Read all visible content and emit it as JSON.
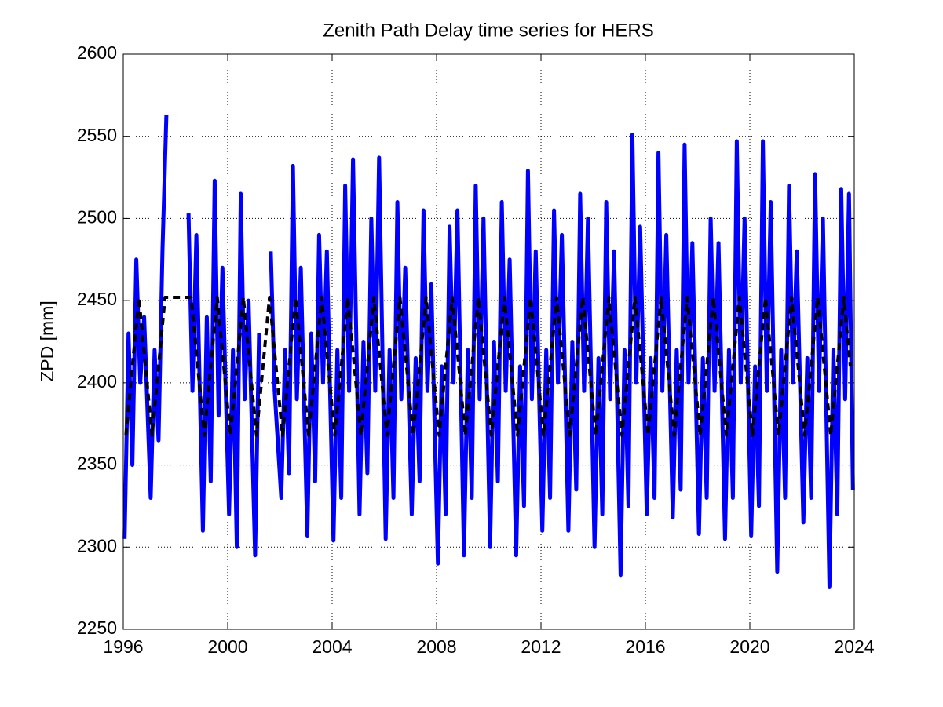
{
  "chart_data": {
    "type": "line",
    "title": "Zenith Path Delay time series for HERS",
    "y_label": "ZPD [mm]",
    "xlim": [
      1996,
      2024
    ],
    "xticks": [
      1996,
      2000,
      2004,
      2008,
      2012,
      2016,
      2020,
      2024
    ],
    "ylim": [
      2250,
      2600
    ],
    "yticks": [
      2250,
      2300,
      2350,
      2400,
      2450,
      2500,
      2550,
      2600
    ],
    "grid": true,
    "series": [
      {
        "color": "#0000ff",
        "style": "solid",
        "x": [
          1996.05,
          1996.2,
          1996.35,
          1996.5,
          1996.65,
          1996.8,
          1997.05,
          1997.2,
          1997.35,
          1997.5,
          1997.65,
          1997.8,
          1998.05,
          1998.2,
          1998.35,
          1998.5,
          1998.65,
          1998.8,
          1999.05,
          1999.2,
          1999.35,
          1999.5,
          1999.65,
          1999.8,
          2000.05,
          2000.2,
          2000.35,
          2000.5,
          2000.65,
          2000.8,
          2001.05,
          2001.2,
          2001.35,
          2001.5,
          2001.65,
          2001.8,
          2002.05,
          2002.2,
          2002.35,
          2002.5,
          2002.65,
          2002.8,
          2003.05,
          2003.2,
          2003.35,
          2003.5,
          2003.65,
          2003.8,
          2004.05,
          2004.2,
          2004.35,
          2004.5,
          2004.65,
          2004.8,
          2005.05,
          2005.2,
          2005.35,
          2005.5,
          2005.65,
          2005.8,
          2006.05,
          2006.2,
          2006.35,
          2006.5,
          2006.65,
          2006.8,
          2007.05,
          2007.2,
          2007.35,
          2007.5,
          2007.65,
          2007.8,
          2008.05,
          2008.2,
          2008.35,
          2008.5,
          2008.65,
          2008.8,
          2009.05,
          2009.2,
          2009.35,
          2009.5,
          2009.65,
          2009.8,
          2010.05,
          2010.2,
          2010.35,
          2010.5,
          2010.65,
          2010.8,
          2011.05,
          2011.2,
          2011.35,
          2011.5,
          2011.65,
          2011.8,
          2012.05,
          2012.2,
          2012.35,
          2012.5,
          2012.65,
          2012.8,
          2013.05,
          2013.2,
          2013.35,
          2013.5,
          2013.65,
          2013.8,
          2014.05,
          2014.2,
          2014.35,
          2014.5,
          2014.65,
          2014.8,
          2015.05,
          2015.2,
          2015.35,
          2015.5,
          2015.65,
          2015.8,
          2016.05,
          2016.2,
          2016.35,
          2016.5,
          2016.65,
          2016.8,
          2017.05,
          2017.2,
          2017.35,
          2017.5,
          2017.65,
          2017.8,
          2018.05,
          2018.2,
          2018.35,
          2018.5,
          2018.65,
          2018.8,
          2019.05,
          2019.2,
          2019.35,
          2019.5,
          2019.65,
          2019.8,
          2020.05,
          2020.2,
          2020.35,
          2020.5,
          2020.65,
          2020.8,
          2021.05,
          2021.2,
          2021.35,
          2021.5,
          2021.65,
          2021.8,
          2022.05,
          2022.2,
          2022.35,
          2022.5,
          2022.65,
          2022.8,
          2023.05,
          2023.2,
          2023.35,
          2023.5,
          2023.65,
          2023.8,
          2023.95
        ],
        "values": [
          2305,
          2430,
          2350,
          2475,
          2400,
          2440,
          2330,
          2420,
          2365,
          2480,
          2563,
          null,
          null,
          null,
          null,
          2503,
          2395,
          2490,
          2310,
          2440,
          2340,
          2523,
          2380,
          2470,
          2320,
          2420,
          2300,
          2515,
          2390,
          2450,
          2295,
          2430,
          null,
          null,
          2480,
          2395,
          2330,
          2420,
          2345,
          2532,
          2390,
          2470,
          2307,
          2430,
          2340,
          2490,
          2400,
          2480,
          2304,
          2420,
          2330,
          2520,
          2395,
          2536,
          2320,
          2425,
          2345,
          2500,
          2395,
          2537,
          2305,
          2420,
          2330,
          2510,
          2390,
          2470,
          2320,
          2415,
          2340,
          2505,
          2395,
          2460,
          2290,
          2410,
          2320,
          2495,
          2400,
          2505,
          2295,
          2420,
          2330,
          2520,
          2390,
          2500,
          2300,
          2425,
          2340,
          2510,
          2395,
          2475,
          2295,
          2410,
          2325,
          2529,
          2390,
          2480,
          2310,
          2420,
          2330,
          2505,
          2400,
          2490,
          2310,
          2425,
          2335,
          2515,
          2395,
          2500,
          2300,
          2415,
          2320,
          2510,
          2390,
          2480,
          2283,
          2420,
          2325,
          2551,
          2400,
          2495,
          2320,
          2415,
          2330,
          2540,
          2395,
          2490,
          2318,
          2420,
          2335,
          2545,
          2400,
          2485,
          2308,
          2415,
          2330,
          2500,
          2395,
          2485,
          2305,
          2420,
          2330,
          2547,
          2400,
          2500,
          2307,
          2410,
          2325,
          2547,
          2395,
          2510,
          2285,
          2420,
          2330,
          2520,
          2400,
          2480,
          2315,
          2415,
          2330,
          2527,
          2395,
          2500,
          2276,
          2420,
          2320,
          2518,
          2390,
          2515,
          2335
        ]
      },
      {
        "color": "#000000",
        "style": "dashed",
        "x": [
          1996.1,
          1996.35,
          1996.6,
          1996.85,
          1997.1,
          1997.35,
          1997.6,
          1998.6,
          1998.85,
          1999.1,
          1999.35,
          1999.6,
          1999.85,
          2000.1,
          2000.35,
          2000.6,
          2000.85,
          2001.1,
          2001.6,
          2001.85,
          2002.1,
          2002.35,
          2002.6,
          2002.85,
          2003.1,
          2003.35,
          2003.6,
          2003.85,
          2004.1,
          2004.35,
          2004.6,
          2004.85,
          2005.1,
          2005.35,
          2005.6,
          2005.85,
          2006.1,
          2006.35,
          2006.6,
          2006.85,
          2007.1,
          2007.35,
          2007.6,
          2007.85,
          2008.1,
          2008.35,
          2008.6,
          2008.85,
          2009.1,
          2009.35,
          2009.6,
          2009.85,
          2010.1,
          2010.35,
          2010.6,
          2010.85,
          2011.1,
          2011.35,
          2011.6,
          2011.85,
          2012.1,
          2012.35,
          2012.6,
          2012.85,
          2013.1,
          2013.35,
          2013.6,
          2013.85,
          2014.1,
          2014.35,
          2014.6,
          2014.85,
          2015.1,
          2015.35,
          2015.6,
          2015.85,
          2016.1,
          2016.35,
          2016.6,
          2016.85,
          2017.1,
          2017.35,
          2017.6,
          2017.85,
          2018.1,
          2018.35,
          2018.6,
          2018.85,
          2019.1,
          2019.35,
          2019.6,
          2019.85,
          2020.1,
          2020.35,
          2020.6,
          2020.85,
          2021.1,
          2021.35,
          2021.6,
          2021.85,
          2022.1,
          2022.35,
          2022.6,
          2022.85,
          2023.1,
          2023.35,
          2023.6,
          2023.85
        ],
        "values": [
          2368,
          2410,
          2452,
          2410,
          2368,
          2410,
          2452,
          2452,
          2410,
          2368,
          2410,
          2452,
          2410,
          2368,
          2410,
          2452,
          2410,
          2368,
          2452,
          2410,
          2368,
          2410,
          2452,
          2410,
          2368,
          2410,
          2452,
          2410,
          2368,
          2410,
          2452,
          2410,
          2368,
          2410,
          2452,
          2410,
          2368,
          2410,
          2452,
          2410,
          2368,
          2410,
          2452,
          2410,
          2368,
          2410,
          2452,
          2410,
          2368,
          2410,
          2452,
          2410,
          2368,
          2410,
          2452,
          2410,
          2368,
          2410,
          2452,
          2410,
          2368,
          2410,
          2452,
          2410,
          2368,
          2410,
          2452,
          2410,
          2368,
          2410,
          2452,
          2410,
          2368,
          2410,
          2452,
          2410,
          2368,
          2410,
          2452,
          2410,
          2368,
          2410,
          2452,
          2410,
          2368,
          2410,
          2452,
          2410,
          2368,
          2410,
          2452,
          2410,
          2368,
          2410,
          2452,
          2410,
          2368,
          2410,
          2452,
          2410,
          2368,
          2410,
          2452,
          2410,
          2368,
          2410,
          2452,
          2410
        ]
      }
    ]
  }
}
